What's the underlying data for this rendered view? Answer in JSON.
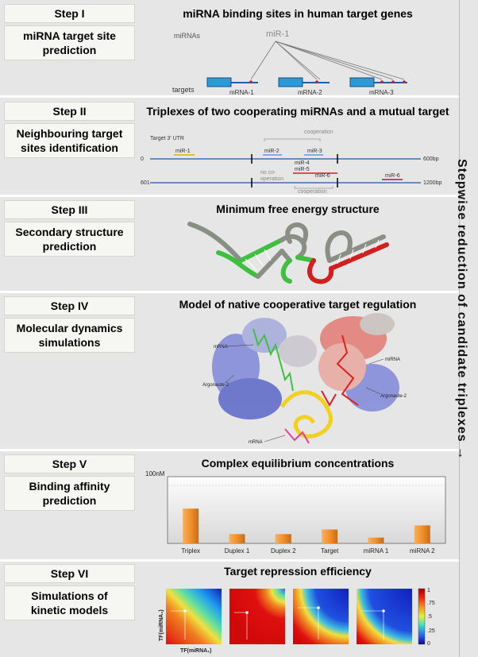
{
  "side_label": "Stepwise reduction of candidate triplexes →",
  "steps": [
    {
      "step": "Step I",
      "desc_lines": [
        "miRNA target site",
        "prediction"
      ],
      "heading": "miRNA binding sites in human target genes"
    },
    {
      "step": "Step II",
      "desc_lines": [
        "Neighbouring target",
        "sites identification"
      ],
      "heading": "Triplexes of two cooperating miRNAs and a mutual target"
    },
    {
      "step": "Step III",
      "desc_lines": [
        "Secondary structure",
        "prediction"
      ],
      "heading": "Minimum free energy structure"
    },
    {
      "step": "Step IV",
      "desc_lines": [
        "Molecular dynamics",
        "simulations"
      ],
      "heading": "Model of native cooperative target regulation"
    },
    {
      "step": "Step V",
      "desc_lines": [
        "Binding affinity",
        "prediction"
      ],
      "heading": "Complex equilibrium concentrations"
    },
    {
      "step": "Step VI",
      "desc_lines": [
        "Simulations of",
        "kinetic models"
      ],
      "heading": "Target repression efficiency"
    }
  ],
  "step1": {
    "mirnas_label": "miRNAs",
    "mir_label": "miR-1",
    "targets_label": "targets",
    "mrnas": [
      "mRNA-1",
      "mRNA-2",
      "mRNA-3"
    ]
  },
  "step2": {
    "utr_label": "Target 3' UTR",
    "row1_start": "0",
    "row1_end": "600bp",
    "row2_start": "601",
    "row2_end": "1200bp",
    "cooperation": "cooperation",
    "no_cooperation": [
      "no co-",
      "operation"
    ],
    "mirs": [
      "miR-1",
      "miR-2",
      "miR-3",
      "miR-4",
      "miR-5",
      "miR-6",
      "miR-6"
    ]
  },
  "step4": {
    "labels": [
      "mRNA",
      "miRNA",
      "Argonaute-2",
      "Argonaute-2",
      "mRNA"
    ]
  },
  "step6": {
    "ylabel": "TF(miRNA₂)",
    "xlabel": "TF(miRNA₁)",
    "colorbar_ticks": [
      "1",
      ".75",
      ".5",
      ".25",
      "0"
    ]
  },
  "chart_data": {
    "type": "bar",
    "categories": [
      "Triplex",
      "Duplex 1",
      "Duplex 2",
      "Target",
      "miRNA 1",
      "miRNA 2"
    ],
    "values": [
      60,
      16,
      16,
      24,
      10,
      31
    ],
    "ylabel": "100nM",
    "ylim": [
      0,
      100
    ],
    "bar_color": "#f0902a"
  }
}
